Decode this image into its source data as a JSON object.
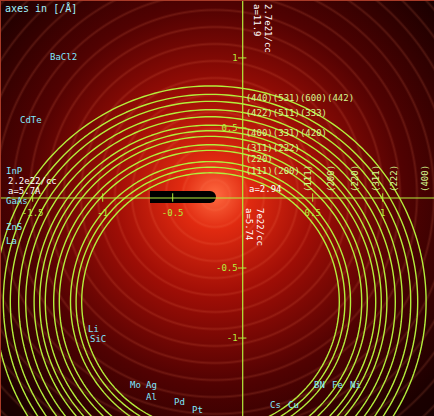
{
  "chart_data": {
    "type": "diffraction_rings",
    "title": "axes in [/Å]",
    "xlim": [
      -1.73,
      1.37
    ],
    "ylim": [
      -1.56,
      1.41
    ],
    "xticks": [
      -1.5,
      -1,
      -0.5,
      0.5,
      1
    ],
    "yticks": [
      1,
      0.5,
      -0.5,
      -1
    ],
    "color": "#b4ee3c",
    "ring_center": [
      -0.23,
      -0.74
    ],
    "rings": [
      {
        "hkl": "(111)",
        "radius": 0.92
      },
      {
        "hkl": "(200)",
        "radius": 0.96
      },
      {
        "hkl": "(220)",
        "radius": 1.0
      },
      {
        "hkl": "(311)",
        "radius": 1.08
      },
      {
        "hkl": "(222)",
        "radius": 1.12
      },
      {
        "hkl": "(400)",
        "radius": 1.18
      },
      {
        "hkl": "(331)",
        "radius": 1.22
      },
      {
        "hkl": "(420)",
        "radius": 1.26
      },
      {
        "hkl": "(422)",
        "radius": 1.32
      },
      {
        "hkl": "(511)",
        "radius": 1.37
      },
      {
        "hkl": "(440)",
        "radius": 1.43
      },
      {
        "hkl": "(531)",
        "radius": 1.48
      },
      {
        "hkl": "(600)",
        "radius": 1.54
      }
    ],
    "ring_label_groups": [
      "(111)(200)",
      "(220)",
      "(311)(222)",
      "(400)(331)(420)",
      "(422)(511)(333)",
      "(440)(531)(600)(442)"
    ],
    "axis_ring_labels": [
      "(111)",
      "(200)",
      "(220)",
      "(311)",
      "(222)",
      "(400)"
    ],
    "materials": [
      "BaCl2",
      "CdTe",
      "InP",
      "GaAs",
      "ZnS",
      "La",
      "Li",
      "SiC",
      "Mo",
      "Ag",
      "Al",
      "Pd",
      "Pt",
      "Cs",
      "Cu",
      "BN",
      "Fe",
      "Ni"
    ],
    "notes": [
      "2.2e22/cc",
      "a=5.7A",
      "a=2.94",
      "a=5.74",
      "7e22/cc",
      "a=11.9",
      "2.7e21/cc"
    ]
  }
}
